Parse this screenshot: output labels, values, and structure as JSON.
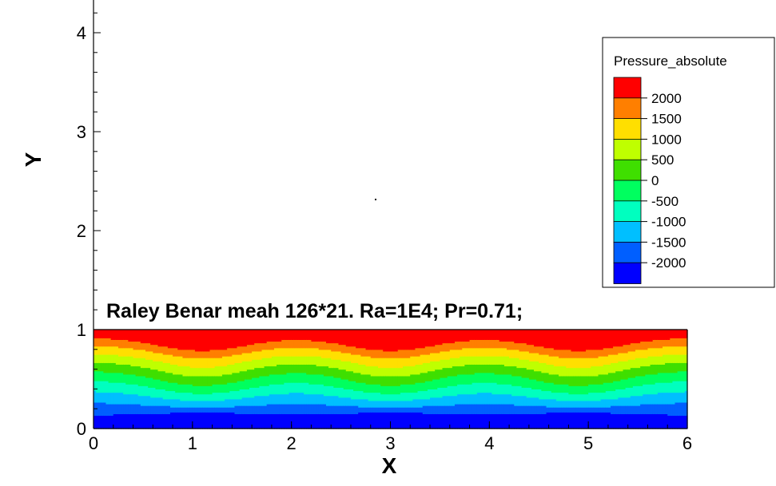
{
  "chart_data": {
    "type": "heatmap",
    "title": "Raley Benar meah 126*21. Ra=1E4; Pr=0.71;",
    "xlabel": "X",
    "ylabel": "Y",
    "xlim": [
      0,
      6
    ],
    "ylim": [
      0,
      4.3
    ],
    "x_ticks": [
      "0",
      "1",
      "2",
      "3",
      "4",
      "5",
      "6"
    ],
    "y_ticks": [
      "0",
      "1",
      "2",
      "3",
      "4"
    ],
    "grid": false,
    "legend_position": "top-right",
    "colorbar": {
      "title": "Pressure_absolute",
      "levels": [
        "2000",
        "1500",
        "1000",
        "500",
        "0",
        "-500",
        "-1000",
        "-1500",
        "-2000"
      ],
      "colors": [
        "#ff0000",
        "#ff7f00",
        "#ffdf00",
        "#bfff00",
        "#3fdf00",
        "#00ff5f",
        "#00ffbf",
        "#00bfff",
        "#005fff",
        "#0000ff"
      ]
    },
    "field": {
      "domain_x": [
        0,
        6
      ],
      "domain_y": [
        0,
        1
      ],
      "peak_x_positions": [
        1.1,
        3.0,
        4.9
      ],
      "min_value": -2000,
      "max_value": 2000
    }
  }
}
